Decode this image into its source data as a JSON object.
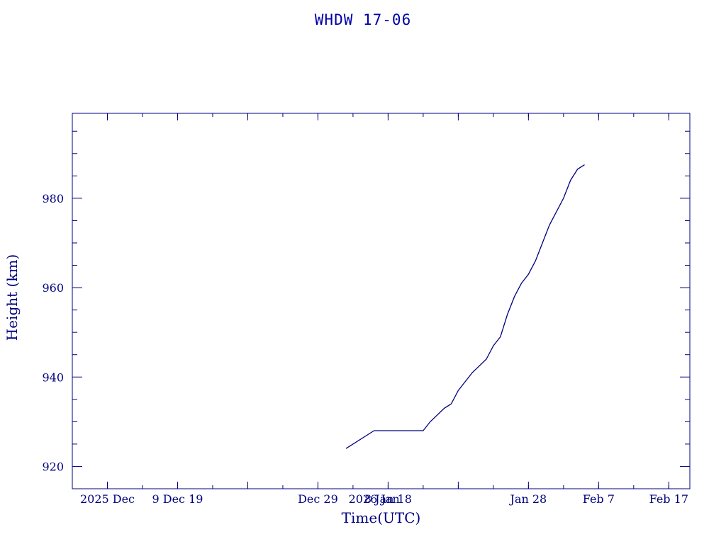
{
  "chart_data": {
    "type": "line",
    "title": "WHDW 17-06",
    "xlabel": "Time(UTC)",
    "ylabel": "Height (km)",
    "x_ticks": [
      {
        "date": "2025-11-29",
        "label": "2025 Dec"
      },
      {
        "date": "2025-12-09",
        "label": "9 Dec 19"
      },
      {
        "date": "2025-12-29",
        "label": "Dec 29"
      },
      {
        "date": "2026-01-06",
        "label": "2026 Jan"
      },
      {
        "date": "2026-01-08",
        "label": "8 Jan 18"
      },
      {
        "date": "2026-01-28",
        "label": "Jan 28"
      },
      {
        "date": "2026-02-07",
        "label": "Feb  7"
      },
      {
        "date": "2026-02-17",
        "label": "Feb 17"
      }
    ],
    "y_ticks": [
      920,
      940,
      960,
      980
    ],
    "xlim": [
      "2025-11-24",
      "2026-02-20"
    ],
    "ylim": [
      915,
      999
    ],
    "grid": false,
    "series": [
      {
        "color": "#000080",
        "points": [
          {
            "x": "2026-01-02",
            "y": 924
          },
          {
            "x": "2026-01-06",
            "y": 928
          },
          {
            "x": "2026-01-13",
            "y": 928
          },
          {
            "x": "2026-01-14",
            "y": 930
          },
          {
            "x": "2026-01-16",
            "y": 933
          },
          {
            "x": "2026-01-17",
            "y": 934
          },
          {
            "x": "2026-01-18",
            "y": 937
          },
          {
            "x": "2026-01-20",
            "y": 941
          },
          {
            "x": "2026-01-22",
            "y": 944
          },
          {
            "x": "2026-01-23",
            "y": 947
          },
          {
            "x": "2026-01-24",
            "y": 949
          },
          {
            "x": "2026-01-25",
            "y": 954
          },
          {
            "x": "2026-01-26",
            "y": 958
          },
          {
            "x": "2026-01-27",
            "y": 961
          },
          {
            "x": "2026-01-28",
            "y": 963
          },
          {
            "x": "2026-01-29",
            "y": 966
          },
          {
            "x": "2026-01-30",
            "y": 970
          },
          {
            "x": "2026-01-31",
            "y": 974
          },
          {
            "x": "2026-02-01",
            "y": 977
          },
          {
            "x": "2026-02-02",
            "y": 980
          },
          {
            "x": "2026-02-03",
            "y": 984
          },
          {
            "x": "2026-02-04",
            "y": 986.5
          },
          {
            "x": "2026-02-05",
            "y": 987.5
          }
        ]
      }
    ]
  },
  "colors": {
    "axis": "#000080",
    "title": "#0000aa",
    "line": "#000080"
  }
}
